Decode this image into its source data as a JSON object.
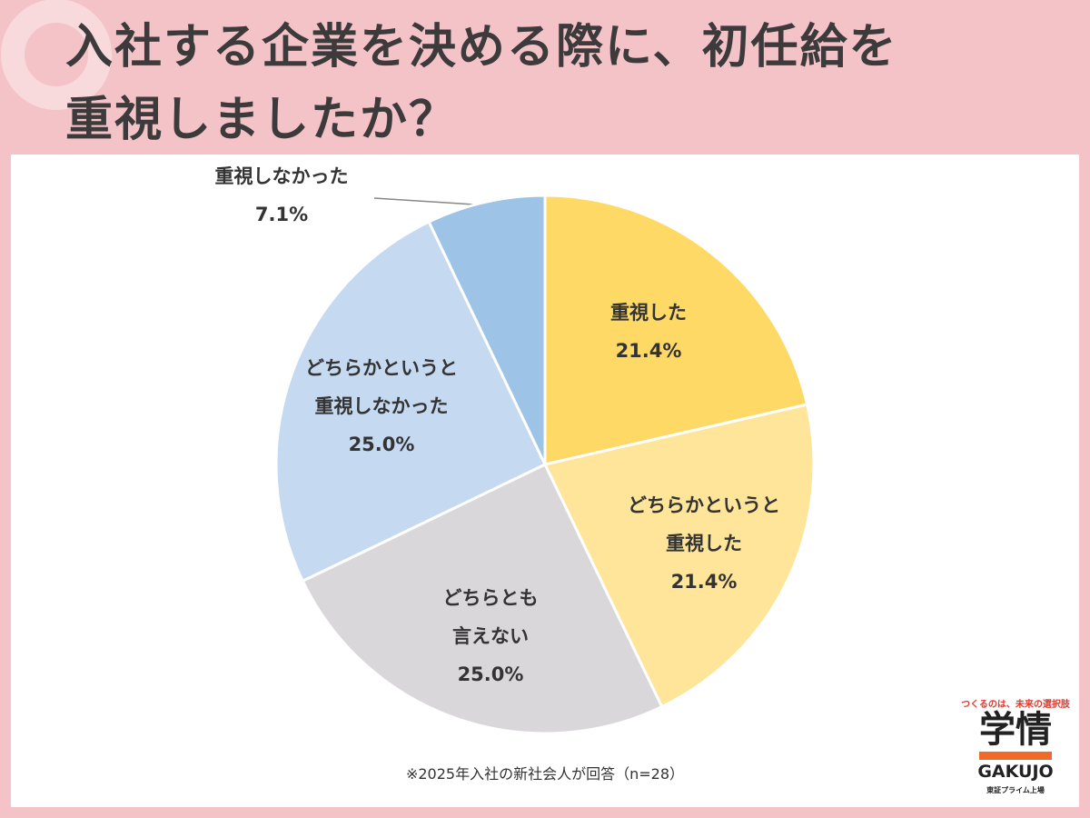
{
  "chart_data": {
    "type": "pie",
    "title_lines": [
      "入社する企業を決める際に、初任給を",
      "重視しましたか？"
    ],
    "categories": [
      "重視した",
      "どちらかというと\n重視した",
      "どちらとも\n言えない",
      "どちらかというと\n重視しなかった",
      "重視しなかった"
    ],
    "values": [
      21.4,
      21.4,
      25.0,
      25.0,
      7.1
    ],
    "value_labels": [
      "21.4%",
      "21.4%",
      "25.0%",
      "25.0%",
      "7.1%"
    ],
    "colors": [
      "#FFD966",
      "#FFE599",
      "#DAD7DB",
      "#C5D9F1",
      "#9DC3E6"
    ],
    "footnote": "※2025年入社の新社会人が回答（n=28）"
  },
  "logo": {
    "tagline": "つくるのは、未来の選択肢",
    "name": "学情",
    "roman": "GAKUJO",
    "listing": "東証プライム上場"
  }
}
